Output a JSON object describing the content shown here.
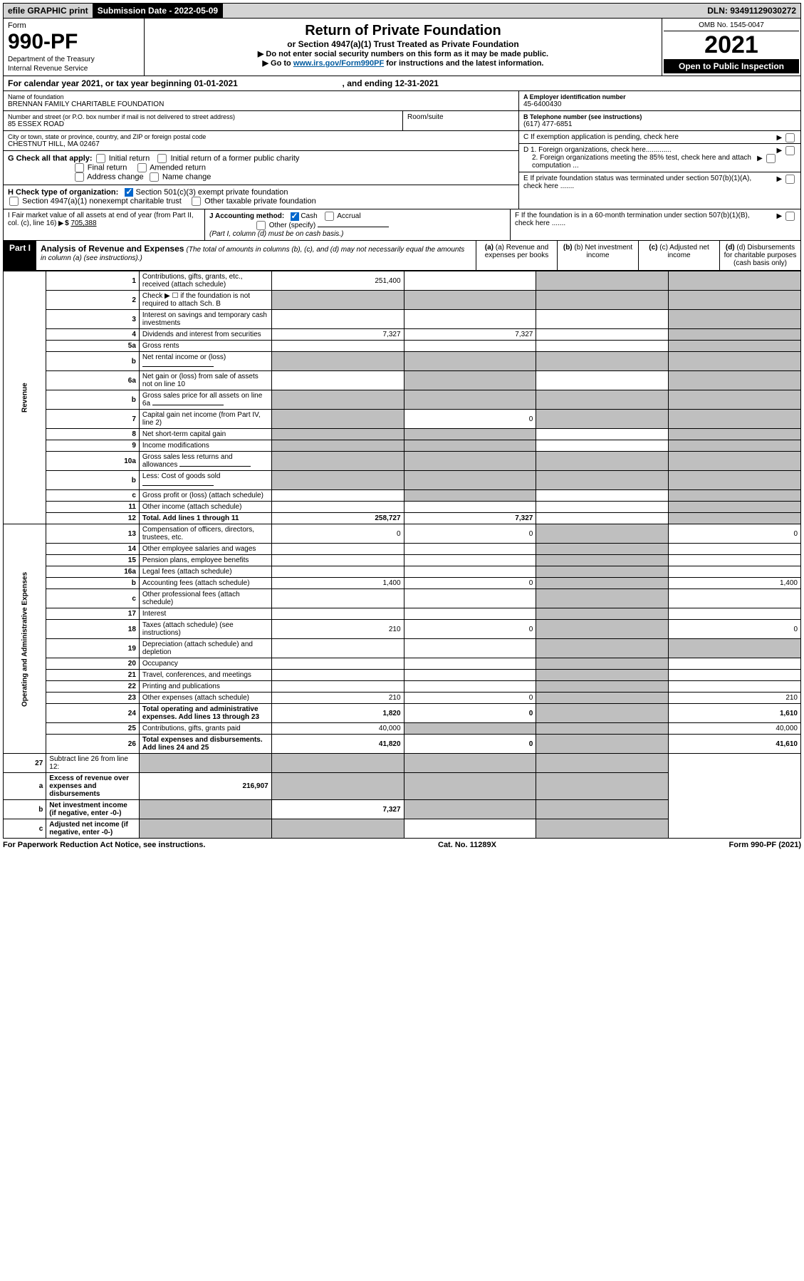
{
  "top": {
    "efile": "efile GRAPHIC print",
    "submission_label": "Submission Date - 2022-05-09",
    "dln": "DLN: 93491129030272"
  },
  "header": {
    "form_label": "Form",
    "form_num": "990-PF",
    "dept1": "Department of the Treasury",
    "dept2": "Internal Revenue Service",
    "title": "Return of Private Foundation",
    "subtitle": "or Section 4947(a)(1) Trust Treated as Private Foundation",
    "instr1": "▶ Do not enter social security numbers on this form as it may be made public.",
    "instr2_pre": "▶ Go to ",
    "instr2_link": "www.irs.gov/Form990PF",
    "instr2_post": " for instructions and the latest information.",
    "omb": "OMB No. 1545-0047",
    "year": "2021",
    "open": "Open to Public Inspection"
  },
  "cy": {
    "text_pre": "For calendar year 2021, or tax year beginning ",
    "begin": "01-01-2021",
    "text_mid": ", and ending ",
    "end": "12-31-2021"
  },
  "name": {
    "label": "Name of foundation",
    "value": "BRENNAN FAMILY CHARITABLE FOUNDATION"
  },
  "addr": {
    "label": "Number and street (or P.O. box number if mail is not delivered to street address)",
    "value": "85 ESSEX ROAD",
    "room_label": "Room/suite"
  },
  "city": {
    "label": "City or town, state or province, country, and ZIP or foreign postal code",
    "value": "CHESTNUT HILL, MA  02467"
  },
  "ein": {
    "label": "A Employer identification number",
    "value": "45-6400430"
  },
  "tel": {
    "label": "B Telephone number (see instructions)",
    "value": "(617) 477-6851"
  },
  "c": "C  If exemption application is pending, check here",
  "d1": "D 1. Foreign organizations, check here.............",
  "d2": "2. Foreign organizations meeting the 85% test, check here and attach computation ...",
  "e": "E  If private foundation status was terminated under section 507(b)(1)(A), check here .......",
  "f": "F  If the foundation is in a 60-month termination under section 507(b)(1)(B), check here .......",
  "g": {
    "label": "G Check all that apply:",
    "opts": [
      "Initial return",
      "Initial return of a former public charity",
      "Final return",
      "Amended return",
      "Address change",
      "Name change"
    ]
  },
  "h": {
    "label": "H Check type of organization:",
    "opt1": "Section 501(c)(3) exempt private foundation",
    "opt2": "Section 4947(a)(1) nonexempt charitable trust",
    "opt3": "Other taxable private foundation"
  },
  "i": {
    "label": "I Fair market value of all assets at end of year (from Part II, col. (c), line 16)",
    "value": "705,388"
  },
  "j": {
    "label": "J Accounting method:",
    "cash": "Cash",
    "accrual": "Accrual",
    "other": "Other (specify)",
    "note": "(Part I, column (d) must be on cash basis.)"
  },
  "part1": {
    "num": "Part I",
    "title": "Analysis of Revenue and Expenses",
    "desc": "(The total of amounts in columns (b), (c), and (d) may not necessarily equal the amounts in column (a) (see instructions).)"
  },
  "cols": {
    "a": "(a) Revenue and expenses per books",
    "b": "(b) Net investment income",
    "c": "(c) Adjusted net income",
    "d": "(d) Disbursements for charitable purposes (cash basis only)"
  },
  "side": {
    "revenue": "Revenue",
    "expenses": "Operating and Administrative Expenses"
  },
  "lines": [
    {
      "n": "1",
      "d": "Contributions, gifts, grants, etc., received (attach schedule)",
      "a": "251,400",
      "b": "",
      "c": "shaded",
      "x": "shaded"
    },
    {
      "n": "2",
      "d": "Check ▶ ☐ if the foundation is not required to attach Sch. B",
      "a": "shaded",
      "b": "shaded",
      "c": "shaded",
      "x": "shaded"
    },
    {
      "n": "3",
      "d": "Interest on savings and temporary cash investments",
      "a": "",
      "b": "",
      "c": "",
      "x": "shaded"
    },
    {
      "n": "4",
      "d": "Dividends and interest from securities",
      "a": "7,327",
      "b": "7,327",
      "c": "",
      "x": "shaded"
    },
    {
      "n": "5a",
      "d": "Gross rents",
      "a": "",
      "b": "",
      "c": "",
      "x": "shaded"
    },
    {
      "n": "b",
      "d": "Net rental income or (loss)",
      "a": "shaded",
      "b": "shaded",
      "c": "shaded",
      "x": "shaded",
      "inline": true
    },
    {
      "n": "6a",
      "d": "Net gain or (loss) from sale of assets not on line 10",
      "a": "",
      "b": "shaded",
      "c": "",
      "x": "shaded"
    },
    {
      "n": "b",
      "d": "Gross sales price for all assets on line 6a",
      "a": "shaded",
      "b": "shaded",
      "c": "shaded",
      "x": "shaded",
      "inline": true
    },
    {
      "n": "7",
      "d": "Capital gain net income (from Part IV, line 2)",
      "a": "shaded",
      "b": "0",
      "c": "shaded",
      "x": "shaded"
    },
    {
      "n": "8",
      "d": "Net short-term capital gain",
      "a": "shaded",
      "b": "shaded",
      "c": "",
      "x": "shaded"
    },
    {
      "n": "9",
      "d": "Income modifications",
      "a": "shaded",
      "b": "shaded",
      "c": "",
      "x": "shaded"
    },
    {
      "n": "10a",
      "d": "Gross sales less returns and allowances",
      "a": "shaded",
      "b": "shaded",
      "c": "shaded",
      "x": "shaded",
      "inline": true
    },
    {
      "n": "b",
      "d": "Less: Cost of goods sold",
      "a": "shaded",
      "b": "shaded",
      "c": "shaded",
      "x": "shaded",
      "inline": true
    },
    {
      "n": "c",
      "d": "Gross profit or (loss) (attach schedule)",
      "a": "",
      "b": "shaded",
      "c": "",
      "x": "shaded"
    },
    {
      "n": "11",
      "d": "Other income (attach schedule)",
      "a": "",
      "b": "",
      "c": "",
      "x": "shaded"
    },
    {
      "n": "12",
      "d": "Total. Add lines 1 through 11",
      "a": "258,727",
      "b": "7,327",
      "c": "",
      "x": "shaded",
      "bold": true
    }
  ],
  "exp_lines": [
    {
      "n": "13",
      "d": "Compensation of officers, directors, trustees, etc.",
      "a": "0",
      "b": "0",
      "c": "shaded",
      "x": "0"
    },
    {
      "n": "14",
      "d": "Other employee salaries and wages",
      "a": "",
      "b": "",
      "c": "shaded",
      "x": ""
    },
    {
      "n": "15",
      "d": "Pension plans, employee benefits",
      "a": "",
      "b": "",
      "c": "shaded",
      "x": ""
    },
    {
      "n": "16a",
      "d": "Legal fees (attach schedule)",
      "a": "",
      "b": "",
      "c": "shaded",
      "x": ""
    },
    {
      "n": "b",
      "d": "Accounting fees (attach schedule)",
      "a": "1,400",
      "b": "0",
      "c": "shaded",
      "x": "1,400"
    },
    {
      "n": "c",
      "d": "Other professional fees (attach schedule)",
      "a": "",
      "b": "",
      "c": "shaded",
      "x": ""
    },
    {
      "n": "17",
      "d": "Interest",
      "a": "",
      "b": "",
      "c": "shaded",
      "x": ""
    },
    {
      "n": "18",
      "d": "Taxes (attach schedule) (see instructions)",
      "a": "210",
      "b": "0",
      "c": "shaded",
      "x": "0"
    },
    {
      "n": "19",
      "d": "Depreciation (attach schedule) and depletion",
      "a": "",
      "b": "",
      "c": "shaded",
      "x": "shaded"
    },
    {
      "n": "20",
      "d": "Occupancy",
      "a": "",
      "b": "",
      "c": "shaded",
      "x": ""
    },
    {
      "n": "21",
      "d": "Travel, conferences, and meetings",
      "a": "",
      "b": "",
      "c": "shaded",
      "x": ""
    },
    {
      "n": "22",
      "d": "Printing and publications",
      "a": "",
      "b": "",
      "c": "shaded",
      "x": ""
    },
    {
      "n": "23",
      "d": "Other expenses (attach schedule)",
      "a": "210",
      "b": "0",
      "c": "shaded",
      "x": "210"
    },
    {
      "n": "24",
      "d": "Total operating and administrative expenses. Add lines 13 through 23",
      "a": "1,820",
      "b": "0",
      "c": "shaded",
      "x": "1,610",
      "bold": true
    },
    {
      "n": "25",
      "d": "Contributions, gifts, grants paid",
      "a": "40,000",
      "b": "shaded",
      "c": "shaded",
      "x": "40,000"
    },
    {
      "n": "26",
      "d": "Total expenses and disbursements. Add lines 24 and 25",
      "a": "41,820",
      "b": "0",
      "c": "shaded",
      "x": "41,610",
      "bold": true
    }
  ],
  "final_lines": [
    {
      "n": "27",
      "d": "Subtract line 26 from line 12:",
      "a": "shaded",
      "b": "shaded",
      "c": "shaded",
      "x": "shaded"
    },
    {
      "n": "a",
      "d": "Excess of revenue over expenses and disbursements",
      "a": "216,907",
      "b": "shaded",
      "c": "shaded",
      "x": "shaded",
      "bold": true
    },
    {
      "n": "b",
      "d": "Net investment income (if negative, enter -0-)",
      "a": "shaded",
      "b": "7,327",
      "c": "shaded",
      "x": "shaded",
      "bold": true
    },
    {
      "n": "c",
      "d": "Adjusted net income (if negative, enter -0-)",
      "a": "shaded",
      "b": "shaded",
      "c": "",
      "x": "shaded",
      "bold": true
    }
  ],
  "footer": {
    "left": "For Paperwork Reduction Act Notice, see instructions.",
    "mid": "Cat. No. 11289X",
    "right": "Form 990-PF (2021)"
  }
}
